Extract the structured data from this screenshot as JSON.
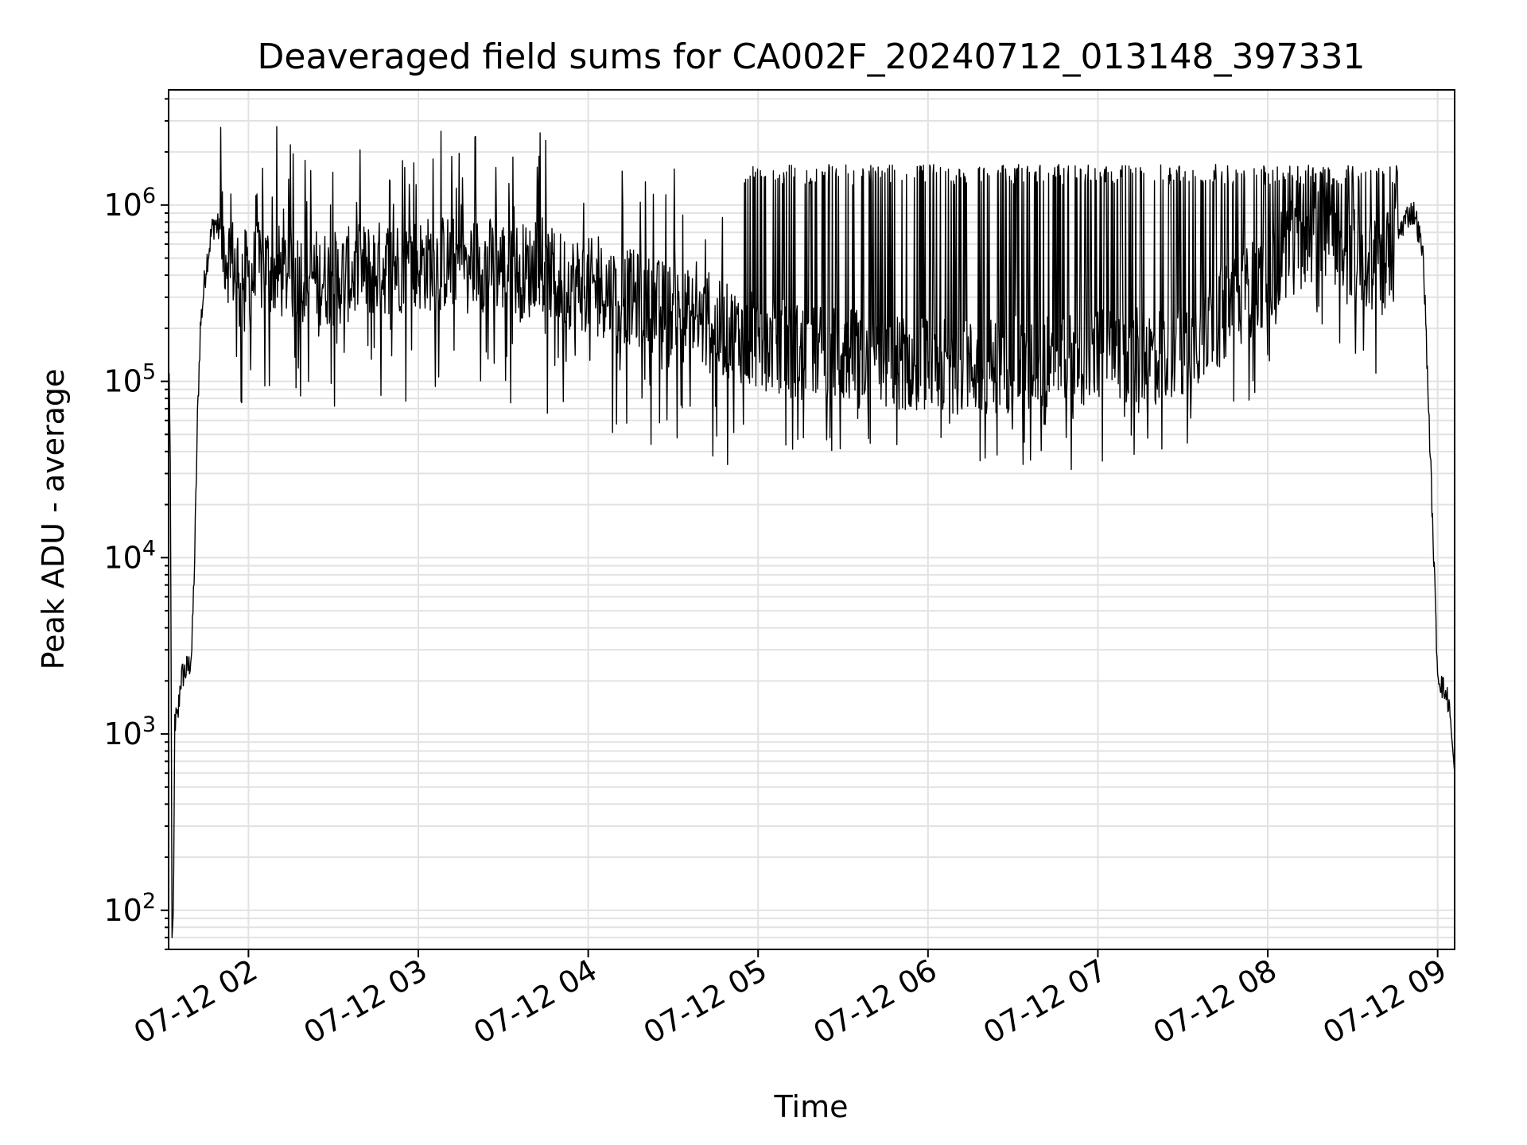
{
  "chart_data": {
    "type": "line",
    "title": "Deaveraged field sums for CA002F_20240712_013148_397331",
    "xlabel": "Time",
    "ylabel": "Peak ADU - average",
    "yscale": "log",
    "ylim": [
      60,
      4500000
    ],
    "xlim": [
      "2024-07-12 01:31:48",
      "2024-07-12 09:06:00"
    ],
    "grid": true,
    "legend": "none",
    "line_color": "#000000",
    "x_ticks": [
      {
        "at": "2024-07-12 02:00",
        "label": "07-12 02"
      },
      {
        "at": "2024-07-12 03:00",
        "label": "07-12 03"
      },
      {
        "at": "2024-07-12 04:00",
        "label": "07-12 04"
      },
      {
        "at": "2024-07-12 05:00",
        "label": "07-12 05"
      },
      {
        "at": "2024-07-12 06:00",
        "label": "07-12 06"
      },
      {
        "at": "2024-07-12 07:00",
        "label": "07-12 07"
      },
      {
        "at": "2024-07-12 08:00",
        "label": "07-12 08"
      },
      {
        "at": "2024-07-12 09:00",
        "label": "07-12 09"
      }
    ],
    "y_ticks": [
      {
        "value": 100,
        "base": "10",
        "exp": "2"
      },
      {
        "value": 1000,
        "base": "10",
        "exp": "3"
      },
      {
        "value": 10000,
        "base": "10",
        "exp": "4"
      },
      {
        "value": 100000,
        "base": "10",
        "exp": "5"
      },
      {
        "value": 1000000,
        "base": "10",
        "exp": "6"
      }
    ],
    "series": [
      {
        "name": "",
        "x": [
          "2024-07-12 01:31:48",
          "2024-07-12 01:32:00",
          "2024-07-12 01:32:30",
          "2024-07-12 01:33:00",
          "2024-07-12 01:33:30",
          "2024-07-12 01:34:00",
          "2024-07-12 01:35:00",
          "2024-07-12 01:36:00",
          "2024-07-12 01:37:00",
          "2024-07-12 01:39:00",
          "2024-07-12 01:40:00",
          "2024-07-12 01:41:00",
          "2024-07-12 01:42:00",
          "2024-07-12 01:43:00",
          "2024-07-12 01:45:00",
          "2024-07-12 01:47:00",
          "2024-07-12 01:48:00",
          "2024-07-12 01:50:00",
          "2024-07-12 01:52:00",
          "2024-07-12 01:55:00",
          "2024-07-12 01:58:00",
          "2024-07-12 02:00:00",
          "2024-07-12 02:05:00",
          "2024-07-12 02:10:00",
          "2024-07-12 02:20:00",
          "2024-07-12 02:30:00",
          "2024-07-12 02:40:00",
          "2024-07-12 02:50:00",
          "2024-07-12 03:00:00",
          "2024-07-12 03:15:00",
          "2024-07-12 03:30:00",
          "2024-07-12 03:45:00",
          "2024-07-12 04:00:00",
          "2024-07-12 04:15:00",
          "2024-07-12 04:30:00",
          "2024-07-12 04:45:00",
          "2024-07-12 05:00:00",
          "2024-07-12 05:15:00",
          "2024-07-12 05:30:00",
          "2024-07-12 05:45:00",
          "2024-07-12 06:00:00",
          "2024-07-12 06:15:00",
          "2024-07-12 06:30:00",
          "2024-07-12 06:45:00",
          "2024-07-12 07:00:00",
          "2024-07-12 07:15:00",
          "2024-07-12 07:30:00",
          "2024-07-12 07:45:00",
          "2024-07-12 08:00:00",
          "2024-07-12 08:10:00",
          "2024-07-12 08:20:00",
          "2024-07-12 08:30:00",
          "2024-07-12 08:35:00",
          "2024-07-12 08:40:00",
          "2024-07-12 08:45:00",
          "2024-07-12 08:48:00",
          "2024-07-12 08:50:00",
          "2024-07-12 08:52:00",
          "2024-07-12 08:55:00",
          "2024-07-12 08:58:00",
          "2024-07-12 09:00:00",
          "2024-07-12 09:02:00",
          "2024-07-12 09:04:00",
          "2024-07-12 09:06:00"
        ],
        "y": [
          30000,
          120000,
          20000,
          70,
          100,
          1200,
          1200,
          2000,
          2200,
          2400,
          3000,
          10000,
          60000,
          200000,
          450000,
          700000,
          800000,
          700000,
          550000,
          450000,
          400000,
          380000,
          450000,
          420000,
          400000,
          380000,
          420000,
          450000,
          460000,
          480000,
          450000,
          400000,
          350000,
          300000,
          250000,
          200000,
          170000,
          150000,
          140000,
          130000,
          125000,
          120000,
          125000,
          130000,
          135000,
          140000,
          150000,
          250000,
          400000,
          600000,
          700000,
          550000,
          450000,
          450000,
          600000,
          800000,
          900000,
          900000,
          500000,
          20000,
          2200,
          1800,
          1500,
          600
        ]
      }
    ]
  }
}
